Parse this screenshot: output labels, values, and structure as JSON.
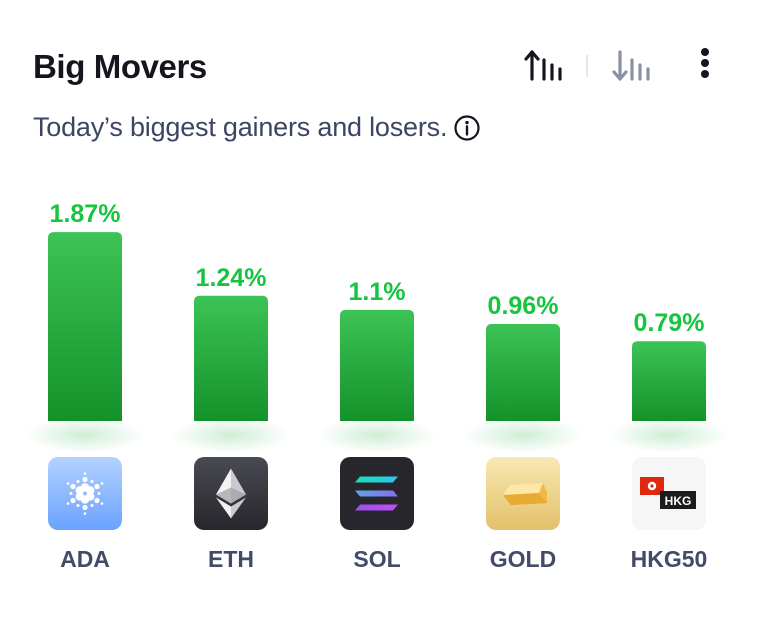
{
  "header": {
    "title": "Big Movers",
    "subtitle": "Today’s biggest gainers and losers.",
    "sort_desc_icon": "sort-descending-bars-icon",
    "sort_asc_icon": "sort-ascending-bars-icon",
    "more_icon": "more-vertical-icon",
    "info_icon": "info-circle-icon"
  },
  "colors": {
    "gain": "#15c53d",
    "bar_top": "#3cc356",
    "bar_bottom": "#14922a",
    "text_dark": "#15151f",
    "text_muted": "#444b68"
  },
  "chart_data": {
    "type": "bar",
    "categories": [
      "ADA",
      "ETH",
      "SOL",
      "GOLD",
      "HKG50"
    ],
    "values": [
      1.87,
      1.24,
      1.1,
      0.96,
      0.79
    ],
    "value_labels": [
      "1.87%",
      "1.24%",
      "1.1%",
      "0.96%",
      "0.79%"
    ],
    "title": "",
    "xlabel": "",
    "ylabel": "",
    "grid": false
  },
  "assets": [
    {
      "symbol": "ADA",
      "icon": "cardano-logo-icon"
    },
    {
      "symbol": "ETH",
      "icon": "ethereum-logo-icon"
    },
    {
      "symbol": "SOL",
      "icon": "solana-logo-icon"
    },
    {
      "symbol": "GOLD",
      "icon": "gold-bar-icon"
    },
    {
      "symbol": "HKG50",
      "icon": "hong-kong-flag-icon"
    },
    {
      "symbol_badge": "HKG"
    }
  ]
}
